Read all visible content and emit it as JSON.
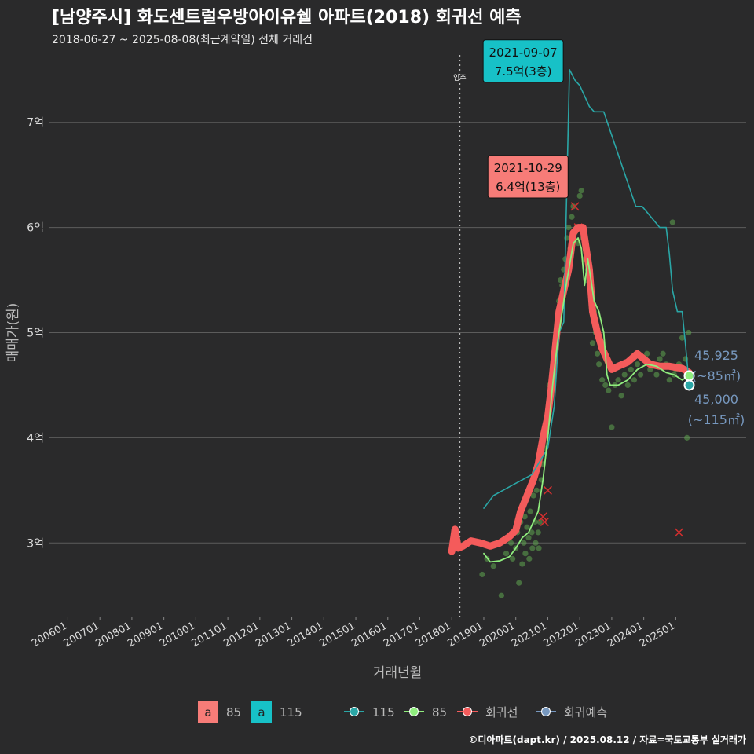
{
  "header": {
    "title": "[남양주시] 화도센트럴우방아이유쉘 아파트(2018) 회귀선 예측",
    "subtitle": "2018-06-27 ~ 2025-08-08(최근계약일) 전체 거래건"
  },
  "caption": "©디아파트(dapt.kr) / 2025.08.12 / 자료=국토교통부 실거래가",
  "colors": {
    "background": "#2a2a2b",
    "grid": "#5c5c5c",
    "line_115": "#2aa6a6",
    "line_85": "#90ee7e",
    "regression": "#f45b5b",
    "forecast": "#7798bf",
    "box_85": "#f77c78",
    "box_115": "#17c1c7",
    "points_85": "#5fa550"
  },
  "chart_data": {
    "type": "line",
    "xlabel": "거래년월",
    "ylabel": "매매가(원)",
    "x_tick_labels": [
      "200601",
      "200701",
      "200801",
      "200901",
      "201001",
      "201101",
      "201201",
      "201301",
      "201401",
      "201501",
      "201601",
      "201701",
      "201801",
      "201901",
      "202001",
      "202101",
      "202201",
      "202301",
      "202401",
      "202501"
    ],
    "x_tick_years": [
      2006,
      2007,
      2008,
      2009,
      2010,
      2011,
      2012,
      2013,
      2014,
      2015,
      2016,
      2017,
      2018,
      2019,
      2020,
      2021,
      2022,
      2023,
      2024,
      2025
    ],
    "xlim": [
      2005.4,
      2027.2
    ],
    "y_ticks": [
      3,
      4,
      5,
      6,
      7
    ],
    "y_tick_labels": [
      "3억",
      "4억",
      "5억",
      "6억",
      "7억"
    ],
    "ylim": [
      2.3,
      7.7
    ],
    "vline": {
      "x": 2018.25,
      "label": "입주"
    },
    "series": [
      {
        "name": "115",
        "points": [
          [
            2019.0,
            3.33
          ],
          [
            2019.3,
            3.45
          ],
          [
            2019.6,
            3.5
          ],
          [
            2019.9,
            3.55
          ],
          [
            2020.2,
            3.6
          ],
          [
            2020.5,
            3.65
          ],
          [
            2020.8,
            3.8
          ],
          [
            2021.0,
            3.9
          ],
          [
            2021.2,
            4.3
          ],
          [
            2021.35,
            5.0
          ],
          [
            2021.5,
            5.1
          ],
          [
            2021.68,
            7.5
          ],
          [
            2021.85,
            7.4
          ],
          [
            2022.0,
            7.35
          ],
          [
            2022.15,
            7.25
          ],
          [
            2022.3,
            7.15
          ],
          [
            2022.45,
            7.1
          ],
          [
            2022.6,
            7.1
          ],
          [
            2022.75,
            7.1
          ],
          [
            2023.75,
            6.2
          ],
          [
            2023.95,
            6.2
          ],
          [
            2024.5,
            6.0
          ],
          [
            2024.7,
            6.0
          ],
          [
            2024.8,
            5.75
          ],
          [
            2024.9,
            5.4
          ],
          [
            2025.05,
            5.2
          ],
          [
            2025.2,
            5.2
          ],
          [
            2025.3,
            4.9
          ],
          [
            2025.42,
            4.5
          ]
        ]
      },
      {
        "name": "85",
        "points": [
          [
            2019.0,
            2.9
          ],
          [
            2019.2,
            2.82
          ],
          [
            2019.5,
            2.83
          ],
          [
            2019.8,
            2.87
          ],
          [
            2020.0,
            2.95
          ],
          [
            2020.2,
            3.05
          ],
          [
            2020.4,
            3.1
          ],
          [
            2020.55,
            3.2
          ],
          [
            2020.7,
            3.3
          ],
          [
            2020.85,
            3.6
          ],
          [
            2021.0,
            4.0
          ],
          [
            2021.15,
            4.5
          ],
          [
            2021.3,
            4.9
          ],
          [
            2021.45,
            5.2
          ],
          [
            2021.6,
            5.5
          ],
          [
            2021.8,
            5.85
          ],
          [
            2021.95,
            5.9
          ],
          [
            2022.05,
            5.8
          ],
          [
            2022.15,
            5.45
          ],
          [
            2022.25,
            5.7
          ],
          [
            2022.45,
            5.3
          ],
          [
            2022.6,
            5.2
          ],
          [
            2022.75,
            5.0
          ],
          [
            2022.85,
            4.6
          ],
          [
            2022.95,
            4.5
          ],
          [
            2023.2,
            4.5
          ],
          [
            2023.5,
            4.55
          ],
          [
            2023.8,
            4.65
          ],
          [
            2024.1,
            4.7
          ],
          [
            2024.4,
            4.68
          ],
          [
            2024.7,
            4.62
          ],
          [
            2024.95,
            4.6
          ],
          [
            2025.2,
            4.55
          ],
          [
            2025.42,
            4.59
          ]
        ]
      },
      {
        "name": "회귀선",
        "points": [
          [
            2018.0,
            2.92
          ],
          [
            2018.1,
            3.13
          ],
          [
            2018.2,
            2.95
          ],
          [
            2018.35,
            2.97
          ],
          [
            2018.6,
            3.02
          ],
          [
            2018.9,
            3.0
          ],
          [
            2019.2,
            2.97
          ],
          [
            2019.5,
            3.0
          ],
          [
            2019.8,
            3.06
          ],
          [
            2020.0,
            3.12
          ],
          [
            2020.15,
            3.3
          ],
          [
            2020.35,
            3.45
          ],
          [
            2020.55,
            3.6
          ],
          [
            2020.7,
            3.75
          ],
          [
            2020.85,
            4.0
          ],
          [
            2021.0,
            4.2
          ],
          [
            2021.1,
            4.45
          ],
          [
            2021.25,
            4.9
          ],
          [
            2021.35,
            5.2
          ],
          [
            2021.5,
            5.4
          ],
          [
            2021.65,
            5.6
          ],
          [
            2021.8,
            5.95
          ],
          [
            2021.95,
            6.0
          ],
          [
            2022.1,
            6.0
          ],
          [
            2022.2,
            5.8
          ],
          [
            2022.3,
            5.6
          ],
          [
            2022.4,
            5.2
          ],
          [
            2022.55,
            5.0
          ],
          [
            2022.7,
            4.85
          ],
          [
            2022.85,
            4.75
          ],
          [
            2023.0,
            4.65
          ],
          [
            2023.2,
            4.68
          ],
          [
            2023.5,
            4.72
          ],
          [
            2023.8,
            4.8
          ],
          [
            2024.0,
            4.75
          ],
          [
            2024.2,
            4.7
          ],
          [
            2024.5,
            4.68
          ],
          [
            2024.8,
            4.68
          ],
          [
            2025.0,
            4.67
          ],
          [
            2025.2,
            4.66
          ],
          [
            2025.42,
            4.62
          ]
        ]
      }
    ],
    "scatter_85": [
      [
        2018.95,
        2.7
      ],
      [
        2019.1,
        2.85
      ],
      [
        2019.3,
        2.78
      ],
      [
        2019.55,
        2.5
      ],
      [
        2019.7,
        2.9
      ],
      [
        2019.85,
        3.0
      ],
      [
        2019.9,
        2.85
      ],
      [
        2020.0,
        2.95
      ],
      [
        2020.05,
        3.1
      ],
      [
        2020.1,
        2.62
      ],
      [
        2020.15,
        3.2
      ],
      [
        2020.2,
        2.8
      ],
      [
        2020.25,
        3.0
      ],
      [
        2020.28,
        3.25
      ],
      [
        2020.3,
        2.9
      ],
      [
        2020.35,
        3.15
      ],
      [
        2020.4,
        3.05
      ],
      [
        2020.42,
        2.85
      ],
      [
        2020.45,
        3.3
      ],
      [
        2020.5,
        3.1
      ],
      [
        2020.52,
        2.95
      ],
      [
        2020.55,
        3.45
      ],
      [
        2020.6,
        3.2
      ],
      [
        2020.62,
        3.0
      ],
      [
        2020.65,
        3.5
      ],
      [
        2020.7,
        3.1
      ],
      [
        2020.72,
        2.95
      ],
      [
        2020.75,
        3.2
      ],
      [
        2020.8,
        3.6
      ],
      [
        2020.85,
        3.75
      ],
      [
        2020.9,
        3.9
      ],
      [
        2020.95,
        4.05
      ],
      [
        2021.0,
        4.2
      ],
      [
        2021.05,
        4.5
      ],
      [
        2021.1,
        4.4
      ],
      [
        2021.15,
        4.6
      ],
      [
        2021.2,
        4.8
      ],
      [
        2021.25,
        4.95
      ],
      [
        2021.3,
        5.1
      ],
      [
        2021.35,
        5.3
      ],
      [
        2021.4,
        5.5
      ],
      [
        2021.45,
        5.45
      ],
      [
        2021.5,
        5.6
      ],
      [
        2021.55,
        5.7
      ],
      [
        2021.6,
        5.9
      ],
      [
        2021.65,
        6.0
      ],
      [
        2021.7,
        5.8
      ],
      [
        2021.75,
        6.1
      ],
      [
        2021.8,
        6.2
      ],
      [
        2021.85,
        5.95
      ],
      [
        2021.9,
        6.0
      ],
      [
        2021.95,
        5.85
      ],
      [
        2022.0,
        6.3
      ],
      [
        2022.05,
        6.35
      ],
      [
        2022.1,
        5.9
      ],
      [
        2022.15,
        5.7
      ],
      [
        2022.2,
        5.5
      ],
      [
        2022.25,
        5.6
      ],
      [
        2022.3,
        5.55
      ],
      [
        2022.35,
        5.45
      ],
      [
        2022.4,
        4.9
      ],
      [
        2022.45,
        5.2
      ],
      [
        2022.5,
        5.0
      ],
      [
        2022.55,
        4.8
      ],
      [
        2022.6,
        4.7
      ],
      [
        2022.7,
        4.55
      ],
      [
        2022.8,
        4.5
      ],
      [
        2022.9,
        4.45
      ],
      [
        2023.0,
        4.1
      ],
      [
        2023.1,
        4.5
      ],
      [
        2023.2,
        4.55
      ],
      [
        2023.3,
        4.4
      ],
      [
        2023.4,
        4.6
      ],
      [
        2023.5,
        4.5
      ],
      [
        2023.6,
        4.65
      ],
      [
        2023.7,
        4.55
      ],
      [
        2023.8,
        4.7
      ],
      [
        2023.9,
        4.6
      ],
      [
        2024.0,
        4.75
      ],
      [
        2024.1,
        4.8
      ],
      [
        2024.2,
        4.65
      ],
      [
        2024.3,
        4.7
      ],
      [
        2024.4,
        4.6
      ],
      [
        2024.5,
        4.75
      ],
      [
        2024.6,
        4.8
      ],
      [
        2024.7,
        4.7
      ],
      [
        2024.8,
        4.55
      ],
      [
        2024.9,
        6.05
      ],
      [
        2024.95,
        4.6
      ],
      [
        2025.0,
        4.65
      ],
      [
        2025.1,
        4.7
      ],
      [
        2025.2,
        4.95
      ],
      [
        2025.3,
        4.75
      ],
      [
        2025.35,
        4.0
      ],
      [
        2025.4,
        5.0
      ]
    ],
    "x_markers": [
      [
        2020.85,
        3.25
      ],
      [
        2020.9,
        3.2
      ],
      [
        2021.0,
        3.5
      ],
      [
        2021.95,
        6.0
      ],
      [
        2021.85,
        6.2
      ],
      [
        2025.1,
        3.1
      ]
    ],
    "annotations": [
      {
        "series": "115",
        "date": "2021-09-07",
        "price": "7.5억(3층)",
        "x": 2021.68,
        "y": 7.5
      },
      {
        "series": "85",
        "date": "2021-10-29",
        "price": "6.4억(13층)",
        "x": 2021.83,
        "y": 6.4
      }
    ],
    "forecast": [
      {
        "series": "85",
        "value": "45,925",
        "area": "(~85㎡)",
        "x": 2025.42,
        "y": 4.59
      },
      {
        "series": "115",
        "value": "45,000",
        "area": "(~115㎡)",
        "x": 2025.42,
        "y": 4.5
      }
    ],
    "legend": {
      "position": "bottom",
      "box_items": [
        {
          "label": "85",
          "glyph": "a"
        },
        {
          "label": "115",
          "glyph": "a"
        }
      ],
      "line_items": [
        {
          "label": "115"
        },
        {
          "label": "85"
        },
        {
          "label": "회귀선"
        },
        {
          "label": "회귀예측"
        }
      ]
    }
  }
}
